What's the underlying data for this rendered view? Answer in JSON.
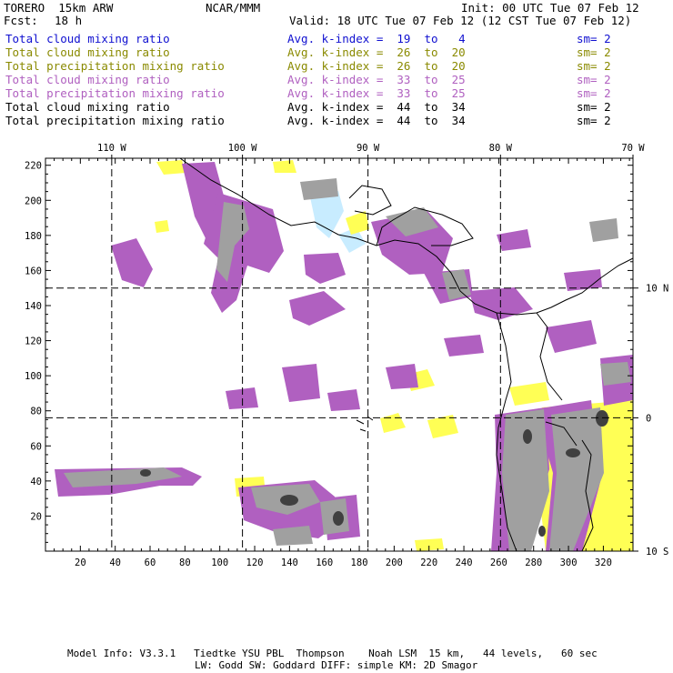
{
  "header": {
    "model": "TORERO  15km ARW",
    "org": "NCAR/MMM",
    "init": "Init: 00 UTC Tue 07 Feb 12",
    "fcst_label": "Fcst:",
    "fcst_value": "18 h",
    "valid": "Valid: 18 UTC Tue 07 Feb 12 (12 CST Tue 07 Feb 12)"
  },
  "legend": [
    {
      "field": "Total cloud mixing ratio",
      "kindex": "Avg. k-index =  19  to   4",
      "sm": "sm= 2",
      "color": "#1010d0"
    },
    {
      "field": "Total cloud mixing ratio",
      "kindex": "Avg. k-index =  26  to  20",
      "sm": "sm= 2",
      "color": "#8a8a00"
    },
    {
      "field": "Total precipitation mixing ratio",
      "kindex": "Avg. k-index =  26  to  20",
      "sm": "sm= 2",
      "color": "#8a8a00"
    },
    {
      "field": "Total cloud mixing ratio",
      "kindex": "Avg. k-index =  33  to  25",
      "sm": "sm= 2",
      "color": "#b060c0"
    },
    {
      "field": "Total precipitation mixing ratio",
      "kindex": "Avg. k-index =  33  to  25",
      "sm": "sm= 2",
      "color": "#b060c0"
    },
    {
      "field": "Total cloud mixing ratio",
      "kindex": "Avg. k-index =  44  to  34",
      "sm": "sm= 2",
      "color": "#000000"
    },
    {
      "field": "Total precipitation mixing ratio",
      "kindex": "Avg. k-index =  44  to  34",
      "sm": "sm= 2",
      "color": "#000000"
    }
  ],
  "colors": {
    "light_blue": "#c8ecff",
    "yellow": "#ffff55",
    "purple": "#b060c0",
    "gray": "#a0a0a0",
    "dark_gray": "#404040"
  },
  "chart_data": {
    "type": "heatmap",
    "x_ticks": [
      20,
      40,
      60,
      80,
      100,
      120,
      140,
      160,
      180,
      200,
      220,
      240,
      260,
      280,
      300,
      320
    ],
    "y_ticks": [
      20,
      40,
      60,
      80,
      100,
      120,
      140,
      160,
      180,
      200,
      220
    ],
    "xlim": [
      0,
      337
    ],
    "ylim": [
      0,
      224
    ],
    "lon_labels": [
      {
        "label": "110 W",
        "x": 38
      },
      {
        "label": "100 W",
        "x": 113
      },
      {
        "label": "90 W",
        "x": 185
      },
      {
        "label": "80 W",
        "x": 261
      },
      {
        "label": "70 W",
        "x": 337
      }
    ],
    "lat_labels": [
      {
        "label": "10 N",
        "y": 150
      },
      {
        "label": "0",
        "y": 76
      },
      {
        "label": "10 S",
        "y": 0
      }
    ],
    "grid_lines": {
      "x": [
        38,
        113,
        185,
        261
      ],
      "y": [
        150,
        76
      ]
    }
  },
  "footer": {
    "line1": "Model Info: V3.3.1   Tiedtke YSU PBL  Thompson    Noah LSM  15 km,   44 levels,   60 sec",
    "line2": "LW: Godd SW: Goddard DIFF: simple KM: 2D Smagor"
  }
}
